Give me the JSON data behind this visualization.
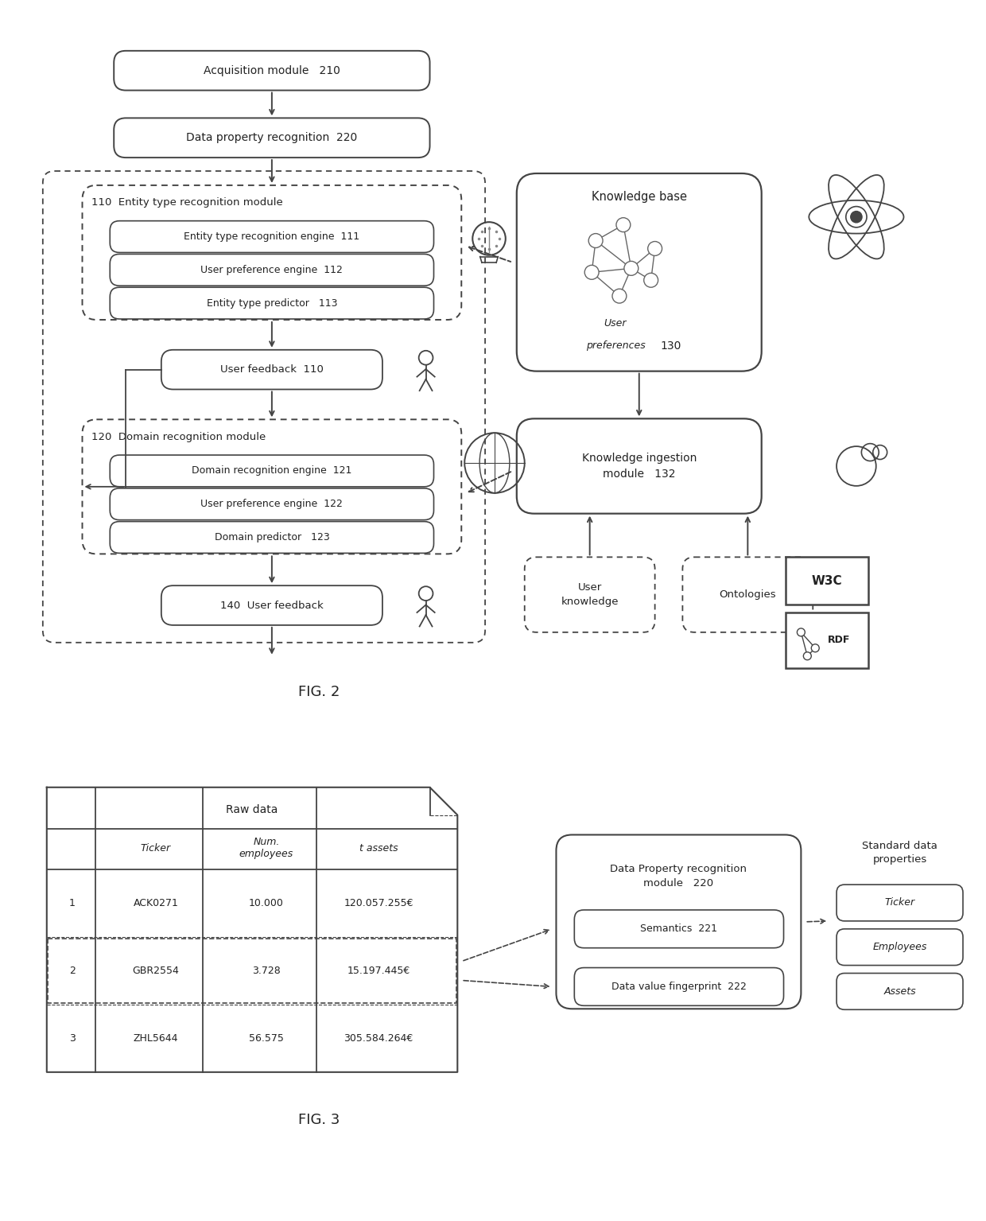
{
  "bg_color": "#ffffff",
  "ec": "#444444",
  "tc": "#222222",
  "fc": "#ffffff",
  "fig2_label": "FIG. 2",
  "fig3_label": "FIG. 3",
  "acq_label": "Acquisition module   210",
  "dpr_label": "Data property recognition  220",
  "etr_label": "110  Entity type recognition module",
  "etr1_label": "Entity type recognition engine  111",
  "etr2_label": "User preference engine  112",
  "etr3_label": "Entity type predictor   113",
  "ufb1_label": "User feedback  110",
  "drm_label": "120  Domain recognition module",
  "drm1_label": "Domain recognition engine  121",
  "drm2_label": "User preference engine  122",
  "drm3_label": "Domain predictor   123",
  "ufb2_label": "140  User feedback",
  "kb_label": "Knowledge base",
  "kb_sub": "User\npreferences",
  "kb_num": "130",
  "kim_label": "Knowledge ingestion\nmodule   132",
  "uk_label": "User\nknowledge",
  "onto_label": "Ontologies",
  "w3c_label": "W3C",
  "rdf_label": "RDF",
  "raw_label": "Raw data",
  "col1": "Ticker",
  "col2": "Num.\nemployees",
  "col3": "t assets",
  "row1": [
    "1",
    "ACK0271",
    "10.000",
    "120.057.255€"
  ],
  "row2": [
    "2",
    "GBR2554",
    "3.728",
    "15.197.445€"
  ],
  "row3": [
    "3",
    "ZHL5644",
    "56.575",
    "305.584.264€"
  ],
  "dpr_mod_label": "Data Property recognition\nmodule   220",
  "sem_label": "Semantics  221",
  "dvf_label": "Data value fingerprint  222",
  "std_label": "Standard data\nproperties",
  "std1": "Ticker",
  "std2": "Employees",
  "std3": "Assets"
}
